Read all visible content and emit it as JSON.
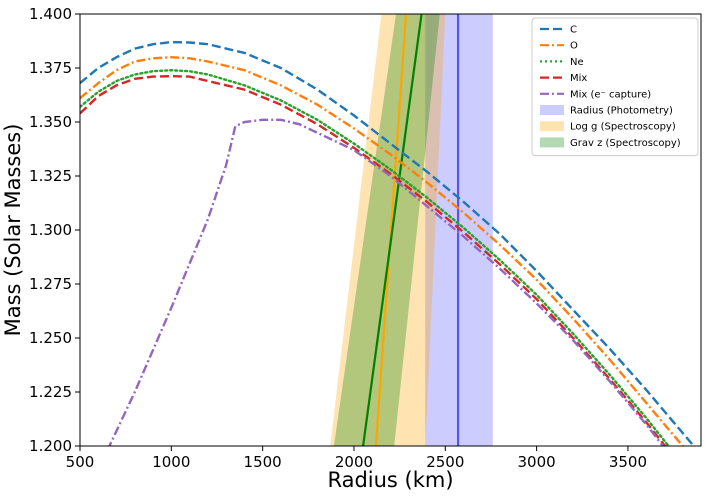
{
  "chart_data": {
    "type": "line",
    "xlabel": "Radius (km)",
    "ylabel": "Mass (Solar Masses)",
    "xlim": [
      500,
      3900
    ],
    "ylim": [
      1.2,
      1.4
    ],
    "xticks": [
      500,
      1000,
      1500,
      2000,
      2500,
      3000,
      3500
    ],
    "yticks": [
      1.2,
      1.225,
      1.25,
      1.275,
      1.3,
      1.325,
      1.35,
      1.375,
      1.4
    ],
    "xtick_labels": [
      "500",
      "1000",
      "1500",
      "2000",
      "2500",
      "3000",
      "3500"
    ],
    "ytick_labels": [
      "1.200",
      "1.225",
      "1.250",
      "1.275",
      "1.300",
      "1.325",
      "1.350",
      "1.375",
      "1.400"
    ],
    "grid": false,
    "legend_position": "top-right",
    "series": [
      {
        "name": "C",
        "style": "dashed",
        "color": "#1f77b4",
        "x": [
          500,
          600,
          700,
          800,
          900,
          1000,
          1100,
          1200,
          1400,
          1600,
          1800,
          2000,
          2200,
          2400,
          2600,
          2800,
          3000,
          3200,
          3400,
          3600,
          3800,
          3900
        ],
        "y": [
          1.368,
          1.375,
          1.38,
          1.384,
          1.386,
          1.387,
          1.3868,
          1.386,
          1.382,
          1.375,
          1.365,
          1.353,
          1.34,
          1.327,
          1.313,
          1.298,
          1.281,
          1.263,
          1.245,
          1.226,
          1.206,
          1.196
        ]
      },
      {
        "name": "O",
        "style": "dashdot",
        "color": "#ff7f0e",
        "x": [
          500,
          600,
          700,
          800,
          900,
          1000,
          1100,
          1200,
          1400,
          1600,
          1800,
          2000,
          2200,
          2400,
          2600,
          2800,
          3000,
          3200,
          3400,
          3600,
          3800,
          3850
        ],
        "y": [
          1.361,
          1.368,
          1.374,
          1.378,
          1.3795,
          1.38,
          1.3795,
          1.378,
          1.374,
          1.367,
          1.358,
          1.347,
          1.335,
          1.322,
          1.308,
          1.293,
          1.277,
          1.259,
          1.24,
          1.22,
          1.2,
          1.195
        ]
      },
      {
        "name": "Ne",
        "style": "dotted",
        "color": "#2ca02c",
        "x": [
          500,
          600,
          700,
          800,
          900,
          1000,
          1100,
          1200,
          1400,
          1600,
          1800,
          2000,
          2200,
          2400,
          2600,
          2800,
          3000,
          3200,
          3400,
          3600,
          3760
        ],
        "y": [
          1.357,
          1.364,
          1.369,
          1.372,
          1.3735,
          1.374,
          1.3735,
          1.372,
          1.367,
          1.36,
          1.351,
          1.34,
          1.328,
          1.315,
          1.301,
          1.286,
          1.27,
          1.252,
          1.233,
          1.213,
          1.196
        ]
      },
      {
        "name": "Mix",
        "style": "dashed",
        "color": "#d62728",
        "x": [
          500,
          600,
          700,
          800,
          900,
          1000,
          1100,
          1200,
          1400,
          1600,
          1800,
          2000,
          2200,
          2400,
          2600,
          2800,
          3000,
          3200,
          3400,
          3600,
          3750
        ],
        "y": [
          1.354,
          1.362,
          1.367,
          1.37,
          1.371,
          1.3712,
          1.371,
          1.369,
          1.365,
          1.358,
          1.349,
          1.338,
          1.326,
          1.313,
          1.299,
          1.284,
          1.268,
          1.25,
          1.231,
          1.211,
          1.195
        ]
      },
      {
        "name": "Mix (e⁻ capture)",
        "style": "dashdot",
        "color": "#9467bd",
        "x": [
          650,
          800,
          1000,
          1200,
          1300,
          1350,
          1400,
          1500,
          1600,
          1700,
          1800,
          1900,
          2000,
          2200,
          2400,
          2600,
          2800,
          3000,
          3200,
          3400,
          3600,
          3720
        ],
        "y": [
          1.198,
          1.225,
          1.264,
          1.305,
          1.33,
          1.348,
          1.35,
          1.351,
          1.351,
          1.349,
          1.345,
          1.341,
          1.337,
          1.325,
          1.311,
          1.297,
          1.282,
          1.266,
          1.249,
          1.23,
          1.21,
          1.197
        ]
      }
    ],
    "bands": [
      {
        "name": "Radius (Photometry)",
        "color": "#0000ff",
        "opacity": 0.2,
        "polygon_x": [
          2390,
          2760,
          2760,
          2390
        ],
        "polygon_y": [
          1.2,
          1.2,
          1.4,
          1.4
        ]
      },
      {
        "name": "Log g (Spectroscopy)",
        "color": "#ffa500",
        "opacity": 0.3,
        "polygon_x": [
          1870,
          2390,
          2500,
          2150
        ],
        "polygon_y": [
          1.2,
          1.2,
          1.4,
          1.4
        ]
      },
      {
        "name": "Grav z (Spectroscopy)",
        "color": "#008000",
        "opacity": 0.3,
        "polygon_x": [
          1890,
          2220,
          2470,
          2230
        ],
        "polygon_y": [
          1.2,
          1.2,
          1.4,
          1.4
        ]
      }
    ],
    "reference_lines": [
      {
        "color": "#5555ee",
        "x": [
          2570,
          2570
        ],
        "y": [
          1.2,
          1.4
        ]
      },
      {
        "color": "#ffa500",
        "x": [
          2120,
          2285
        ],
        "y": [
          1.2,
          1.4
        ]
      },
      {
        "color": "#008000",
        "x": [
          2050,
          2370
        ],
        "y": [
          1.2,
          1.4
        ]
      }
    ]
  }
}
